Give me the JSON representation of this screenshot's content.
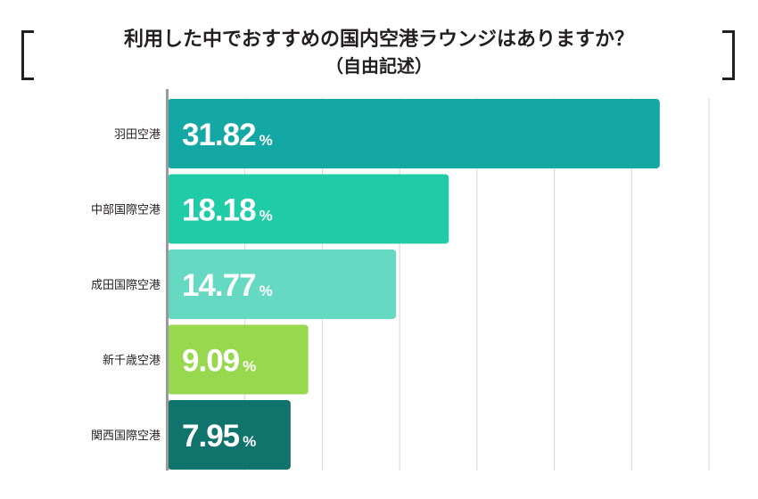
{
  "chart_data": {
    "type": "bar",
    "orientation": "horizontal",
    "title": "利用した中でおすすめの国内空港ラウンジはありますか？",
    "subtitle": "（自由記述）",
    "categories": [
      "羽田空港",
      "中部国際空港",
      "成田国際空港",
      "新千歳空港",
      "関西国際空港"
    ],
    "values": [
      31.82,
      18.18,
      14.77,
      9.09,
      7.95
    ],
    "value_labels": [
      "31.82",
      "18.18",
      "14.77",
      "9.09",
      "7.95"
    ],
    "unit": "%",
    "bar_colors": [
      "#14a8a4",
      "#1fcca7",
      "#66d9c2",
      "#97d84f",
      "#10736c"
    ],
    "xlim": [
      0,
      35
    ],
    "grid": true,
    "xlabel": "",
    "ylabel": ""
  }
}
